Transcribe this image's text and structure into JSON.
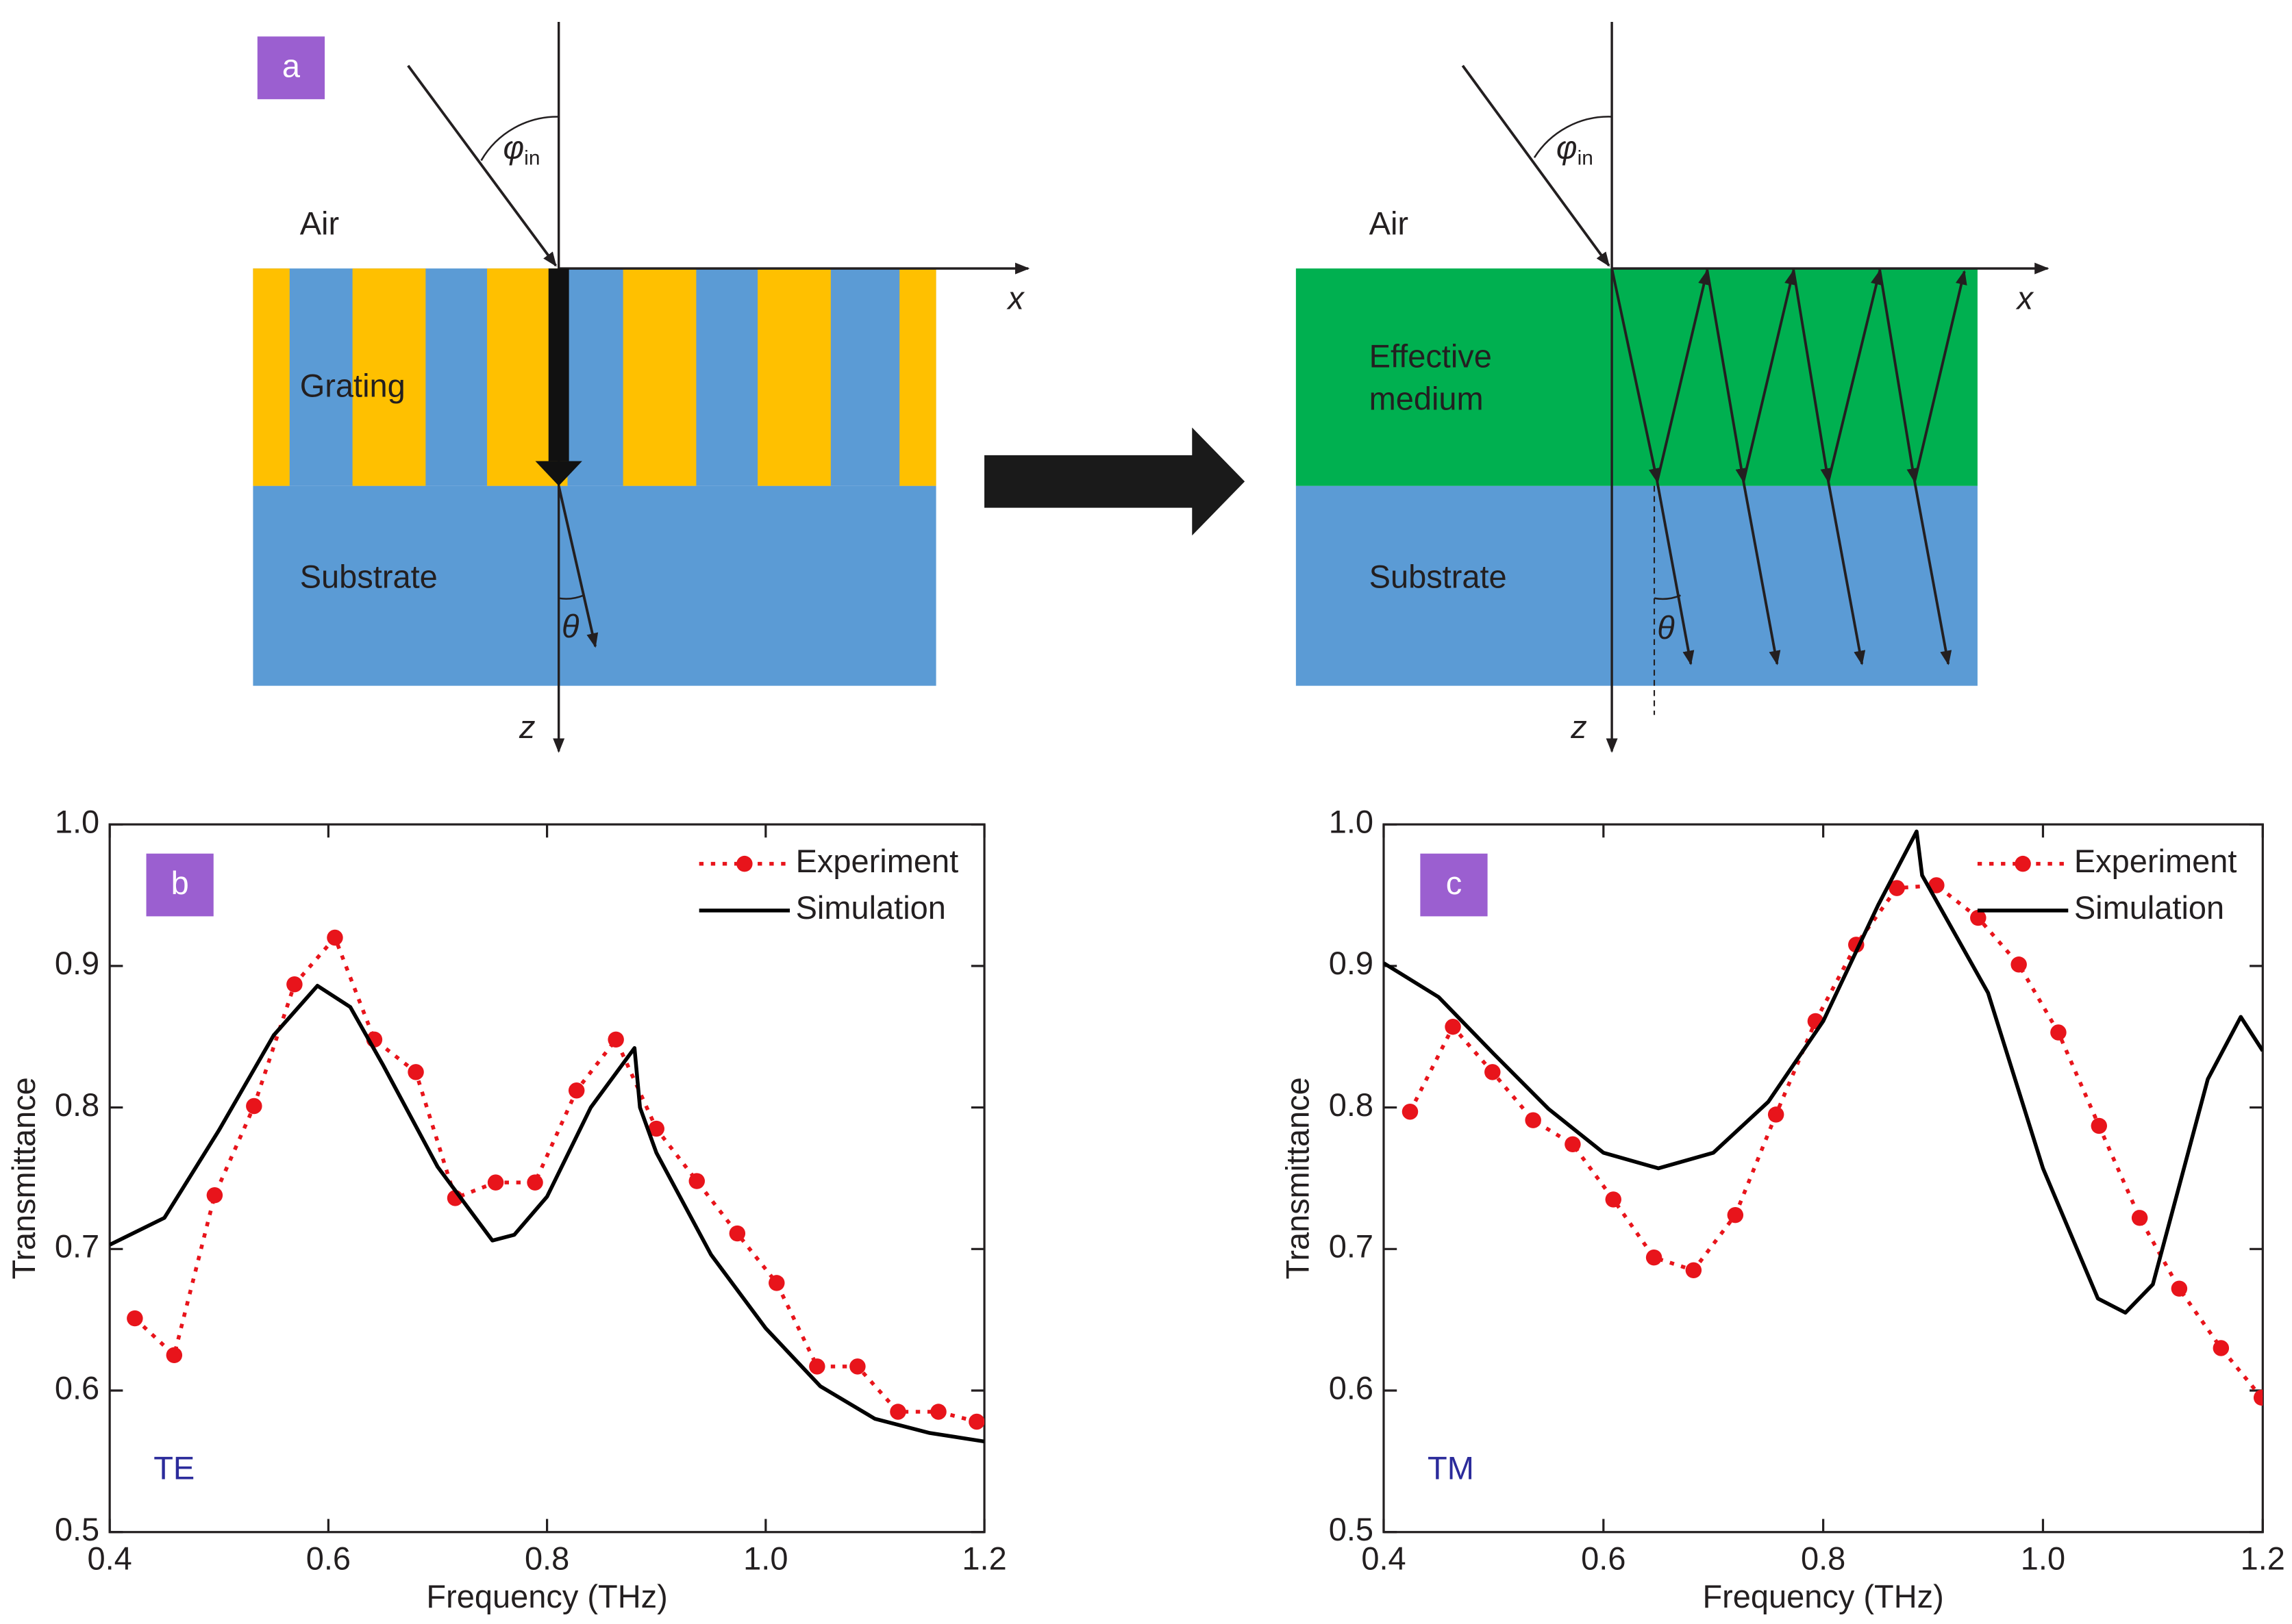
{
  "panel_a": {
    "label": "a",
    "left": {
      "angle_in": {
        "symbol": "φ",
        "subscript": "in"
      },
      "air": "Air",
      "layer": [
        "Grating"
      ],
      "substrate": "Substrate",
      "x_axis": "x",
      "z_axis": "z",
      "angle_out": "θ"
    },
    "right": {
      "angle_in": {
        "symbol": "φ",
        "subscript": "in"
      },
      "air": "Air",
      "layer": [
        "Effective",
        "medium"
      ],
      "substrate": "Substrate",
      "x_axis": "x",
      "z_axis": "z",
      "angle_out": "θ"
    }
  },
  "chart_data": [
    {
      "type": "line",
      "panel_label": "b",
      "annotation": "TE",
      "annotation_color": "#2b2b9b",
      "xlabel": "Frequency (THz)",
      "ylabel": "Transmittance",
      "xlim": [
        0.4,
        1.2
      ],
      "xticks": [
        0.4,
        0.6,
        0.8,
        {
          "value": 1,
          "label": "1.0"
        },
        1.2
      ],
      "ylim": [
        0.5,
        1
      ],
      "yticks": [
        0.5,
        0.6,
        0.7,
        0.8,
        0.9,
        {
          "value": 1,
          "label": "1.0"
        }
      ],
      "legend": "upper right",
      "series": [
        {
          "name": "Experiment",
          "color": "#e8141b",
          "linestyle": "dotted",
          "marker": "circle",
          "x": [
            0.423,
            0.459,
            0.496,
            0.532,
            0.569,
            0.606,
            0.642,
            0.68,
            0.716,
            0.753,
            0.789,
            0.827,
            0.863,
            0.9,
            0.937,
            0.974,
            1.01,
            1.047,
            1.084,
            1.121,
            1.158,
            1.193
          ],
          "values": [
            0.651,
            0.625,
            0.738,
            0.801,
            0.887,
            0.92,
            0.848,
            0.825,
            0.736,
            0.747,
            0.747,
            0.812,
            0.848,
            0.785,
            0.748,
            0.711,
            0.676,
            0.617,
            0.617,
            0.585,
            0.585,
            0.578
          ]
        },
        {
          "name": "Simulation",
          "color": "#000000",
          "linestyle": "solid",
          "marker": "none",
          "x": [
            0.4,
            0.45,
            0.5,
            0.55,
            0.59,
            0.62,
            0.65,
            0.7,
            0.75,
            0.77,
            0.8,
            0.84,
            0.88,
            0.885,
            0.9,
            0.95,
            1.0,
            1.05,
            1.1,
            1.15,
            1.2
          ],
          "values": [
            0.703,
            0.722,
            0.784,
            0.851,
            0.886,
            0.871,
            0.83,
            0.758,
            0.706,
            0.71,
            0.737,
            0.8,
            0.842,
            0.8,
            0.768,
            0.696,
            0.644,
            0.603,
            0.58,
            0.57,
            0.564
          ]
        }
      ]
    },
    {
      "type": "line",
      "panel_label": "c",
      "annotation": "TM",
      "annotation_color": "#2b2b9b",
      "xlabel": "Frequency (THz)",
      "ylabel": "Transmittance",
      "xlim": [
        0.4,
        1.2
      ],
      "xticks": [
        0.4,
        0.6,
        0.8,
        {
          "value": 1,
          "label": "1.0"
        },
        1.2
      ],
      "ylim": [
        0.5,
        1
      ],
      "yticks": [
        0.5,
        0.6,
        0.7,
        0.8,
        0.9,
        {
          "value": 1,
          "label": "1.0"
        }
      ],
      "legend": "upper right",
      "series": [
        {
          "name": "Experiment",
          "color": "#e8141b",
          "linestyle": "dotted",
          "marker": "circle",
          "x": [
            0.424,
            0.463,
            0.499,
            0.536,
            0.572,
            0.609,
            0.646,
            0.682,
            0.72,
            0.757,
            0.793,
            0.83,
            0.867,
            0.903,
            0.941,
            0.978,
            1.014,
            1.051,
            1.088,
            1.124,
            1.162,
            1.199
          ],
          "values": [
            0.797,
            0.857,
            0.825,
            0.791,
            0.774,
            0.735,
            0.694,
            0.685,
            0.724,
            0.795,
            0.861,
            0.915,
            0.955,
            0.957,
            0.934,
            0.901,
            0.853,
            0.787,
            0.722,
            0.672,
            0.63,
            0.595
          ]
        },
        {
          "name": "Simulation",
          "color": "#000000",
          "linestyle": "solid",
          "marker": "none",
          "x": [
            0.4,
            0.45,
            0.5,
            0.55,
            0.6,
            0.65,
            0.7,
            0.75,
            0.8,
            0.85,
            0.885,
            0.89,
            0.95,
            1.0,
            1.05,
            1.075,
            1.1,
            1.15,
            1.18,
            1.2
          ],
          "values": [
            0.902,
            0.878,
            0.838,
            0.799,
            0.768,
            0.757,
            0.768,
            0.804,
            0.861,
            0.943,
            0.995,
            0.964,
            0.881,
            0.757,
            0.665,
            0.655,
            0.675,
            0.82,
            0.864,
            0.84
          ]
        }
      ]
    }
  ]
}
